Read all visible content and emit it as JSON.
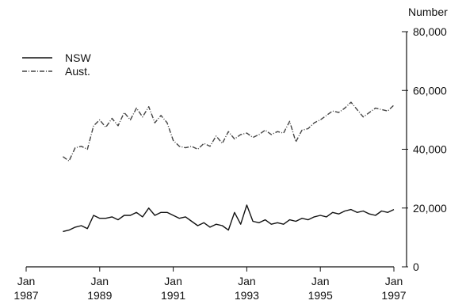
{
  "chart_data": {
    "type": "line",
    "ylabel": "Number",
    "ylim": [
      0,
      80000
    ],
    "y_ticks": [
      {
        "value": 0,
        "label": "0"
      },
      {
        "value": 20000,
        "label": "20,000"
      },
      {
        "value": 40000,
        "label": "40,000"
      },
      {
        "value": 60000,
        "label": "60,000"
      },
      {
        "value": 80000,
        "label": "80,000"
      }
    ],
    "xlim": [
      "1987-01",
      "1997-01"
    ],
    "x_ticks": [
      {
        "value": "1987-01",
        "label_month": "Jan",
        "label_year": "1987"
      },
      {
        "value": "1989-01",
        "label_month": "Jan",
        "label_year": "1989"
      },
      {
        "value": "1991-01",
        "label_month": "Jan",
        "label_year": "1991"
      },
      {
        "value": "1993-01",
        "label_month": "Jan",
        "label_year": "1993"
      },
      {
        "value": "1995-01",
        "label_month": "Jan",
        "label_year": "1995"
      },
      {
        "value": "1997-01",
        "label_month": "Jan",
        "label_year": "1997"
      }
    ],
    "y_axis_side": "right",
    "grid": false,
    "legend_position": "top-left",
    "series": [
      {
        "name": "NSW",
        "color": "#111111",
        "dash": "solid",
        "x": [
          "1988-01",
          "1988-03",
          "1988-05",
          "1988-07",
          "1988-09",
          "1988-11",
          "1989-01",
          "1989-03",
          "1989-05",
          "1989-07",
          "1989-09",
          "1989-11",
          "1990-01",
          "1990-03",
          "1990-05",
          "1990-07",
          "1990-09",
          "1990-11",
          "1991-01",
          "1991-03",
          "1991-05",
          "1991-07",
          "1991-09",
          "1991-11",
          "1992-01",
          "1992-03",
          "1992-05",
          "1992-07",
          "1992-09",
          "1992-11",
          "1993-01",
          "1993-03",
          "1993-05",
          "1993-07",
          "1993-09",
          "1993-11",
          "1994-01",
          "1994-03",
          "1994-05",
          "1994-07",
          "1994-09",
          "1994-11",
          "1995-01",
          "1995-03",
          "1995-05",
          "1995-07",
          "1995-09",
          "1995-11",
          "1996-01",
          "1996-03",
          "1996-05",
          "1996-07",
          "1996-09",
          "1996-11",
          "1997-01"
        ],
        "values": [
          12000,
          12500,
          13500,
          14000,
          13000,
          17500,
          16500,
          16500,
          17000,
          16000,
          17500,
          17500,
          18500,
          17000,
          20000,
          17500,
          18500,
          18500,
          17500,
          16500,
          17000,
          15500,
          14000,
          15000,
          13500,
          14500,
          14000,
          12500,
          18500,
          14500,
          21000,
          15500,
          15000,
          16000,
          14500,
          15000,
          14500,
          16000,
          15500,
          16500,
          16000,
          17000,
          17500,
          17000,
          18500,
          18000,
          19000,
          19500,
          18500,
          19000,
          18000,
          17500,
          19000,
          18500,
          19500
        ]
      },
      {
        "name": "Aust.",
        "color": "#444444",
        "dash": "dashdot",
        "x": [
          "1988-01",
          "1988-03",
          "1988-05",
          "1988-07",
          "1988-09",
          "1988-11",
          "1989-01",
          "1989-03",
          "1989-05",
          "1989-07",
          "1989-09",
          "1989-11",
          "1990-01",
          "1990-03",
          "1990-05",
          "1990-07",
          "1990-09",
          "1990-11",
          "1991-01",
          "1991-03",
          "1991-05",
          "1991-07",
          "1991-09",
          "1991-11",
          "1992-01",
          "1992-03",
          "1992-05",
          "1992-07",
          "1992-09",
          "1992-11",
          "1993-01",
          "1993-03",
          "1993-05",
          "1993-07",
          "1993-09",
          "1993-11",
          "1994-01",
          "1994-03",
          "1994-05",
          "1994-07",
          "1994-09",
          "1994-11",
          "1995-01",
          "1995-03",
          "1995-05",
          "1995-07",
          "1995-09",
          "1995-11",
          "1996-01",
          "1996-03",
          "1996-05",
          "1996-07",
          "1996-09",
          "1996-11",
          "1997-01"
        ],
        "values": [
          37500,
          36000,
          40500,
          41000,
          40000,
          48000,
          50000,
          47500,
          50500,
          48000,
          52500,
          50000,
          54000,
          51000,
          54500,
          49000,
          51500,
          49000,
          43000,
          41000,
          40500,
          41000,
          40000,
          42000,
          41000,
          44500,
          42000,
          46000,
          43500,
          45000,
          45500,
          44000,
          45000,
          46500,
          45000,
          46000,
          45500,
          49500,
          42500,
          46500,
          47000,
          49000,
          50000,
          51500,
          53000,
          52500,
          54000,
          56000,
          53500,
          51000,
          52500,
          54000,
          53500,
          53000,
          55000
        ]
      }
    ]
  }
}
